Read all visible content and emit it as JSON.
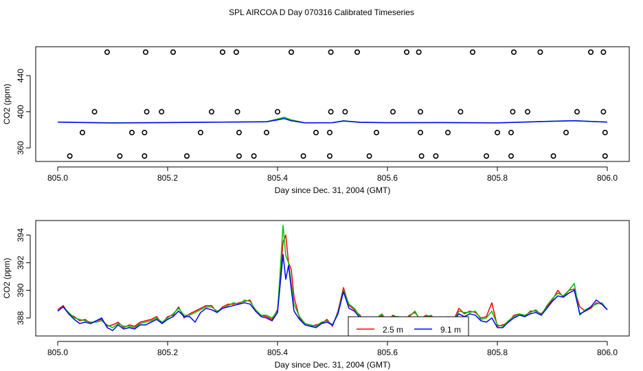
{
  "title": "SPL AIRCOA D  Day 070316  Calibrated Timeseries",
  "colors": {
    "red": "#ff0000",
    "green": "#00c000",
    "blue": "#0000ff",
    "frame": "#000000"
  },
  "chart_data": [
    {
      "type": "scatter",
      "xlabel": "Day since Dec. 31, 2004 (GMT)",
      "ylabel": "CO2 (ppm)",
      "xlim": [
        805.0,
        806.0
      ],
      "ylim": [
        345,
        472
      ],
      "xticks": [
        805.0,
        805.2,
        805.4,
        805.6,
        805.8,
        806.0
      ],
      "xtick_labels": [
        "805.0",
        "805.2",
        "805.4",
        "805.6",
        "805.8",
        "806.0"
      ],
      "yticks": [
        360,
        400,
        440
      ],
      "ytick_labels": [
        "360",
        "400",
        "440"
      ],
      "points": [
        [
          805.09,
          466
        ],
        [
          805.16,
          466
        ],
        [
          805.21,
          466
        ],
        [
          805.3,
          466
        ],
        [
          805.325,
          466
        ],
        [
          805.425,
          466
        ],
        [
          805.497,
          466
        ],
        [
          805.545,
          466
        ],
        [
          805.635,
          466
        ],
        [
          805.657,
          466
        ],
        [
          805.755,
          466
        ],
        [
          805.83,
          466
        ],
        [
          805.878,
          466
        ],
        [
          805.97,
          466
        ],
        [
          805.993,
          466
        ],
        [
          805.067,
          400
        ],
        [
          805.162,
          400
        ],
        [
          805.189,
          400
        ],
        [
          805.28,
          400
        ],
        [
          805.327,
          400
        ],
        [
          805.4,
          400
        ],
        [
          805.497,
          400
        ],
        [
          805.523,
          400
        ],
        [
          805.61,
          400
        ],
        [
          805.66,
          400
        ],
        [
          805.733,
          400
        ],
        [
          805.828,
          400
        ],
        [
          805.855,
          400
        ],
        [
          805.945,
          400
        ],
        [
          805.993,
          400
        ],
        [
          805.045,
          377
        ],
        [
          805.135,
          377
        ],
        [
          805.158,
          377
        ],
        [
          805.26,
          377
        ],
        [
          805.33,
          377
        ],
        [
          805.38,
          377
        ],
        [
          805.47,
          377
        ],
        [
          805.495,
          377
        ],
        [
          805.58,
          377
        ],
        [
          805.66,
          377
        ],
        [
          805.71,
          377
        ],
        [
          805.8,
          377
        ],
        [
          805.825,
          377
        ],
        [
          805.925,
          377
        ],
        [
          805.996,
          377
        ],
        [
          805.022,
          351
        ],
        [
          805.113,
          351
        ],
        [
          805.158,
          351
        ],
        [
          805.235,
          351
        ],
        [
          805.33,
          351
        ],
        [
          805.357,
          351
        ],
        [
          805.447,
          351
        ],
        [
          805.495,
          351
        ],
        [
          805.567,
          351
        ],
        [
          805.662,
          351
        ],
        [
          805.688,
          351
        ],
        [
          805.78,
          351
        ],
        [
          805.825,
          351
        ],
        [
          805.902,
          351
        ],
        [
          805.996,
          351
        ]
      ],
      "series": [
        {
          "name": "green",
          "color": "#00c000",
          "x": [
            805.0,
            805.1,
            805.2,
            805.3,
            805.38,
            805.4,
            805.412,
            805.425,
            805.45,
            805.5,
            805.52,
            805.55,
            805.6,
            805.7,
            805.8,
            805.9,
            805.94,
            806.0
          ],
          "values": [
            388.5,
            387.8,
            388.2,
            388.6,
            389.0,
            392.0,
            394.0,
            391.0,
            387.8,
            388.0,
            390.0,
            388.5,
            388.0,
            388.2,
            387.8,
            389.6,
            390.2,
            388.6
          ]
        },
        {
          "name": "blue",
          "color": "#0000ff",
          "x": [
            805.0,
            805.1,
            805.2,
            805.3,
            805.38,
            805.4,
            805.412,
            805.425,
            805.45,
            805.5,
            805.52,
            805.55,
            805.6,
            805.7,
            805.8,
            805.9,
            805.94,
            806.0
          ],
          "values": [
            388.5,
            387.6,
            388.0,
            388.5,
            388.9,
            391.0,
            392.5,
            390.0,
            387.7,
            387.9,
            389.8,
            388.3,
            387.9,
            388.0,
            387.7,
            389.5,
            390.0,
            388.6
          ]
        }
      ]
    },
    {
      "type": "line",
      "xlabel": "Day since Dec. 31, 2004 (GMT)",
      "ylabel": "CO2 (ppm)",
      "xlim": [
        805.0,
        806.0
      ],
      "ylim": [
        386.7,
        395.05
      ],
      "xticks": [
        805.0,
        805.2,
        805.4,
        805.6,
        805.8,
        806.0
      ],
      "xtick_labels": [
        "805.0",
        "805.2",
        "805.4",
        "805.6",
        "805.8",
        "806.0"
      ],
      "yticks": [
        388,
        390,
        392,
        394
      ],
      "ytick_labels": [
        "388",
        "390",
        "392",
        "394"
      ],
      "x": [
        805.0,
        805.01,
        805.02,
        805.03,
        805.04,
        805.05,
        805.06,
        805.07,
        805.08,
        805.09,
        805.1,
        805.11,
        805.12,
        805.13,
        805.14,
        805.15,
        805.16,
        805.17,
        805.18,
        805.19,
        805.2,
        805.21,
        805.22,
        805.23,
        805.24,
        805.25,
        805.26,
        805.27,
        805.28,
        805.29,
        805.3,
        805.31,
        805.32,
        805.33,
        805.34,
        805.35,
        805.36,
        805.37,
        805.38,
        805.39,
        805.4,
        805.405,
        805.41,
        805.415,
        805.42,
        805.425,
        805.43,
        805.44,
        805.45,
        805.46,
        805.47,
        805.48,
        805.49,
        805.5,
        805.51,
        805.52,
        805.53,
        805.54,
        805.55,
        805.56,
        805.57,
        805.58,
        805.59,
        805.6,
        805.61,
        805.62,
        805.63,
        805.64,
        805.65,
        805.66,
        805.67,
        805.68,
        805.69,
        805.7,
        805.71,
        805.72,
        805.73,
        805.74,
        805.75,
        805.76,
        805.77,
        805.78,
        805.79,
        805.8,
        805.81,
        805.82,
        805.83,
        805.84,
        805.85,
        805.86,
        805.87,
        805.88,
        805.89,
        805.9,
        805.91,
        805.92,
        805.93,
        805.94,
        805.95,
        805.96,
        805.97,
        805.98,
        805.99,
        806.0
      ],
      "series": [
        {
          "name": "2.5 m",
          "color": "#ff0000",
          "values": [
            388.6,
            388.9,
            388.3,
            388.1,
            387.8,
            387.9,
            387.6,
            387.8,
            387.9,
            387.4,
            387.5,
            387.7,
            387.3,
            387.5,
            387.4,
            387.7,
            387.8,
            387.9,
            388.1,
            387.6,
            388.1,
            388.2,
            388.8,
            388.0,
            388.3,
            388.5,
            388.7,
            388.9,
            388.9,
            388.4,
            388.8,
            389.0,
            389.0,
            389.1,
            389.2,
            389.3,
            388.5,
            388.2,
            388.1,
            387.9,
            388.6,
            391.0,
            393.5,
            394.0,
            392.0,
            391.5,
            389.5,
            388.0,
            387.5,
            387.4,
            387.5,
            387.6,
            387.9,
            387.4,
            388.5,
            390.2,
            388.9,
            388.6,
            388.2,
            387.6,
            387.6,
            387.9,
            388.2,
            387.8,
            388.2,
            388.0,
            387.8,
            388.2,
            388.4,
            387.9,
            388.2,
            388.1,
            387.6,
            387.8,
            388.1,
            387.8,
            388.7,
            388.3,
            388.5,
            388.4,
            388.0,
            388.1,
            389.1,
            387.4,
            387.5,
            387.7,
            388.2,
            388.3,
            388.1,
            388.5,
            388.5,
            388.3,
            388.8,
            389.3,
            390.0,
            389.5,
            390.0,
            390.1,
            388.8,
            388.5,
            388.7,
            389.1,
            389.0,
            388.6
          ]
        },
        {
          "name": "green",
          "color": "#00c000",
          "values": [
            388.5,
            388.8,
            388.4,
            388.0,
            387.9,
            387.8,
            387.7,
            387.7,
            387.8,
            387.5,
            387.3,
            387.6,
            387.4,
            387.4,
            387.3,
            387.6,
            387.7,
            387.8,
            388.0,
            387.7,
            388.0,
            388.3,
            388.7,
            388.2,
            388.2,
            388.4,
            388.6,
            388.8,
            388.8,
            388.5,
            388.7,
            388.9,
            389.1,
            389.0,
            389.3,
            389.2,
            388.6,
            388.2,
            388.2,
            388.0,
            388.5,
            391.5,
            394.7,
            392.5,
            392.0,
            390.5,
            389.0,
            388.1,
            387.6,
            387.5,
            387.4,
            387.7,
            387.8,
            387.5,
            388.4,
            390.0,
            389.0,
            388.7,
            388.1,
            387.7,
            387.5,
            388.0,
            388.3,
            387.7,
            388.1,
            388.1,
            387.7,
            388.1,
            388.5,
            387.8,
            388.1,
            388.2,
            387.5,
            387.9,
            388.0,
            387.7,
            388.5,
            388.4,
            388.4,
            388.5,
            387.9,
            388.0,
            388.5,
            387.5,
            387.4,
            387.8,
            388.1,
            388.3,
            388.2,
            388.4,
            388.6,
            388.2,
            388.9,
            389.4,
            389.8,
            389.6,
            390.0,
            390.5,
            388.2,
            388.6,
            388.8,
            389.0,
            389.1,
            388.6
          ]
        },
        {
          "name": "9.1 m",
          "color": "#0000ff",
          "values": [
            388.5,
            388.8,
            388.3,
            387.9,
            387.6,
            387.7,
            387.6,
            387.8,
            388.0,
            387.3,
            387.1,
            387.5,
            387.2,
            387.3,
            387.2,
            387.5,
            387.5,
            387.7,
            387.9,
            387.6,
            387.9,
            388.1,
            388.5,
            388.1,
            388.1,
            387.7,
            388.4,
            388.7,
            388.6,
            388.4,
            388.7,
            388.8,
            388.9,
            389.0,
            389.1,
            389.0,
            388.5,
            388.1,
            388.0,
            387.8,
            388.4,
            390.5,
            392.6,
            390.8,
            391.8,
            390.1,
            388.5,
            387.9,
            387.5,
            387.4,
            387.3,
            387.6,
            387.7,
            387.5,
            388.3,
            389.9,
            388.7,
            388.5,
            388.0,
            387.6,
            387.5,
            387.7,
            388.1,
            387.5,
            387.9,
            387.9,
            387.5,
            387.9,
            388.0,
            387.4,
            387.2,
            387.3,
            387.4,
            387.7,
            387.9,
            387.8,
            388.3,
            388.1,
            388.3,
            388.2,
            387.8,
            387.7,
            388.0,
            387.3,
            387.3,
            387.7,
            388.0,
            388.2,
            388.1,
            388.3,
            388.4,
            388.2,
            388.7,
            389.2,
            389.6,
            389.5,
            389.8,
            390.0,
            388.3,
            388.5,
            388.8,
            389.3,
            389.0,
            388.6
          ]
        }
      ],
      "legend": {
        "position": "bottom-center",
        "entries": [
          "2.5 m",
          "9.1 m"
        ]
      }
    }
  ]
}
